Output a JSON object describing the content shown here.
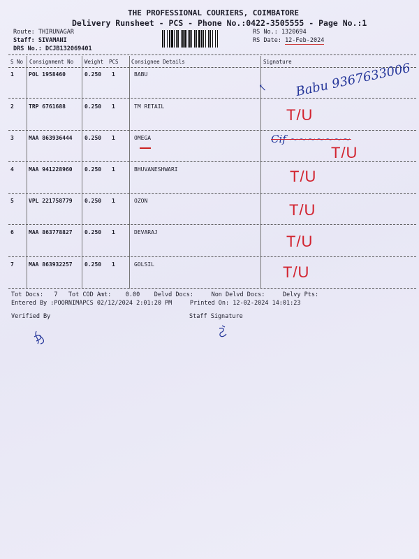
{
  "header": {
    "company": "THE PROFESSIONAL COURIERS, COIMBATORE",
    "subtitle": "Delivery Runsheet - PCS - Phone No.:0422-3505555 - Page No.:1",
    "route": "Route: THIRUNAGAR",
    "staff": "Staff: SIVAMANI",
    "drs": "DRS No.: DCJB132069401",
    "rs_no": "RS No.: 1320694",
    "rs_date_label": "RS Date: ",
    "rs_date": "12-Feb-2024"
  },
  "table": {
    "columns": [
      "S No",
      "Consignment No",
      "Weight",
      "PCS",
      "Consignee Details",
      "Signature"
    ],
    "rows": [
      {
        "sno": "1",
        "consignment": "POL 1958460",
        "weight": "0.250",
        "pcs": "1",
        "consignee": "BABU",
        "signature": "Babu 9367633006"
      },
      {
        "sno": "2",
        "consignment": "TRP 6761688",
        "weight": "0.250",
        "pcs": "1",
        "consignee": "TM RETAIL",
        "signature": "T/U"
      },
      {
        "sno": "3",
        "consignment": "MAA 863936444",
        "weight": "0.250",
        "pcs": "1",
        "consignee": "OMEGA",
        "signature": "T/U"
      },
      {
        "sno": "4",
        "consignment": "MAA 941228960",
        "weight": "0.250",
        "pcs": "1",
        "consignee": "BHUVANESHWARI",
        "signature": "T/U"
      },
      {
        "sno": "5",
        "consignment": "VPL 221758779",
        "weight": "0.250",
        "pcs": "1",
        "consignee": "OZON",
        "signature": "T/U"
      },
      {
        "sno": "6",
        "consignment": "MAA 863778827",
        "weight": "0.250",
        "pcs": "1",
        "consignee": "DEVARAJ",
        "signature": "T/U"
      },
      {
        "sno": "7",
        "consignment": "MAA 863932257",
        "weight": "0.250",
        "pcs": "1",
        "consignee": "GOLSIL",
        "signature": "T/U"
      }
    ]
  },
  "footer": {
    "totals": "Tot Docs:   7   Tot COD Amt:    0.00    Delvd Docs:     Non Delvd Docs:     Delvy Pts:",
    "entered": "Entered By :POORNIMAPCS 02/12/2024 2:01:20 PM     Printed On: 12-02-2024 14:01:23",
    "verified_by": "Verified By",
    "staff_signature": "Staff Signature"
  },
  "colors": {
    "paper": "#ecebf7",
    "ink_red": "#d2232f",
    "ink_blue": "#26379a"
  }
}
